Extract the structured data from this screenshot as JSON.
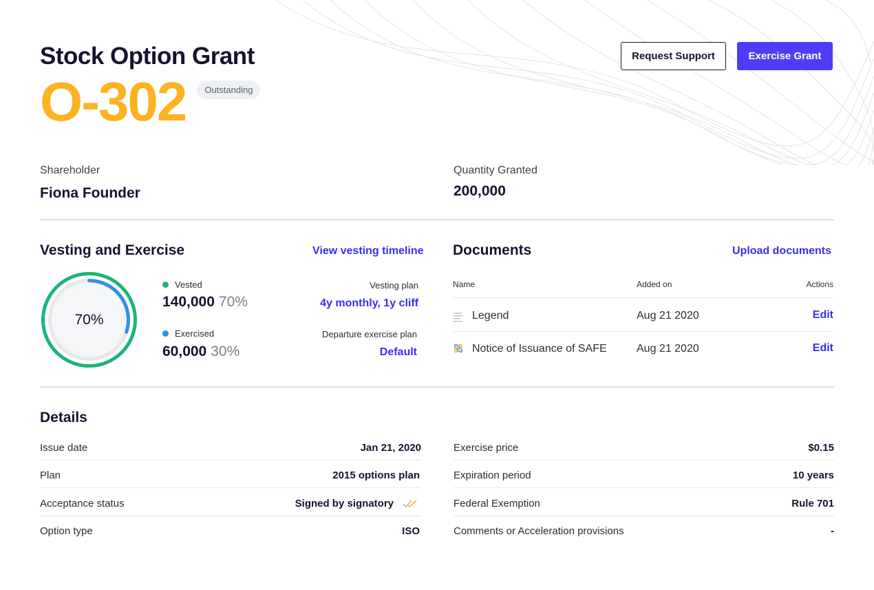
{
  "header": {
    "title": "Stock Option Grant",
    "grant_id": "O-302",
    "status": "Outstanding",
    "request_support_label": "Request Support",
    "exercise_grant_label": "Exercise Grant"
  },
  "summary": {
    "shareholder_label": "Shareholder",
    "shareholder_value": "Fiona Founder",
    "quantity_label": "Quantity Granted",
    "quantity_value": "200,000"
  },
  "vesting": {
    "title": "Vesting and Exercise",
    "timeline_link": "View vesting timeline",
    "ring_percent_text": "70%",
    "vested_fraction": 0.7,
    "exercised_fraction": 0.3,
    "vested_label": "Vested",
    "vested_value": "140,000",
    "vested_pct": "70%",
    "exercised_label": "Exercised",
    "exercised_value": "60,000",
    "exercised_pct": "30%",
    "vesting_plan_label": "Vesting plan",
    "vesting_plan_value": "4y monthly, 1y cliff",
    "departure_plan_label": "Departure exercise plan",
    "departure_plan_value": "Default",
    "colors": {
      "vested": "#1db37a",
      "exercised": "#2f8ff0",
      "track": "#e6e8ec"
    }
  },
  "documents": {
    "title": "Documents",
    "upload_link": "Upload documents",
    "columns": [
      "Name",
      "Added on",
      "Actions"
    ],
    "rows": [
      {
        "name": "Legend",
        "date": "Aug 21 2020",
        "action": "Edit",
        "icon": "text-lines-icon"
      },
      {
        "name": "Notice of Issuance of SAFE",
        "date": "Aug 21 2020",
        "action": "Edit",
        "icon": "atom-icon"
      }
    ]
  },
  "details": {
    "title": "Details",
    "left": [
      {
        "label": "Issue date",
        "value": "Jan 21, 2020"
      },
      {
        "label": "Plan",
        "value": "2015 options plan"
      },
      {
        "label": "Acceptance status",
        "value": "Signed by signatory"
      },
      {
        "label": "Option type",
        "value": "ISO"
      }
    ],
    "right": [
      {
        "label": "Exercise price",
        "value": "$0.15"
      },
      {
        "label": "Expiration period",
        "value": "10 years"
      },
      {
        "label": "Federal Exemption",
        "value": "Rule 701"
      },
      {
        "label": "Comments or Acceleration provisions",
        "value": "-"
      }
    ]
  }
}
